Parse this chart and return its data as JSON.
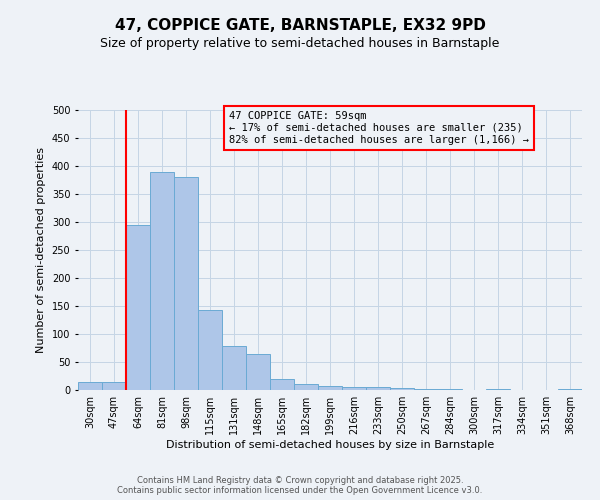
{
  "title": "47, COPPICE GATE, BARNSTAPLE, EX32 9PD",
  "subtitle": "Size of property relative to semi-detached houses in Barnstaple",
  "xlabel": "Distribution of semi-detached houses by size in Barnstaple",
  "ylabel": "Number of semi-detached properties",
  "bar_labels": [
    "30sqm",
    "47sqm",
    "64sqm",
    "81sqm",
    "98sqm",
    "115sqm",
    "131sqm",
    "148sqm",
    "165sqm",
    "182sqm",
    "199sqm",
    "216sqm",
    "233sqm",
    "250sqm",
    "267sqm",
    "284sqm",
    "300sqm",
    "317sqm",
    "334sqm",
    "351sqm",
    "368sqm"
  ],
  "bar_values": [
    15,
    15,
    295,
    390,
    380,
    143,
    79,
    65,
    20,
    10,
    8,
    5,
    5,
    3,
    1,
    1,
    0,
    1,
    0,
    0,
    2
  ],
  "bar_color": "#aec6e8",
  "bar_edge_color": "#6aaad4",
  "ylim": [
    0,
    500
  ],
  "yticks": [
    0,
    50,
    100,
    150,
    200,
    250,
    300,
    350,
    400,
    450,
    500
  ],
  "red_line_index": 2,
  "annotation_title": "47 COPPICE GATE: 59sqm",
  "annotation_line1": "← 17% of semi-detached houses are smaller (235)",
  "annotation_line2": "82% of semi-detached houses are larger (1,166) →",
  "footer_line1": "Contains HM Land Registry data © Crown copyright and database right 2025.",
  "footer_line2": "Contains public sector information licensed under the Open Government Licence v3.0.",
  "bg_color": "#eef2f7",
  "grid_color": "#c5d5e5",
  "title_fontsize": 11,
  "subtitle_fontsize": 9,
  "ylabel_fontsize": 8,
  "xlabel_fontsize": 8,
  "tick_fontsize": 7,
  "annotation_fontsize": 7.5,
  "footer_fontsize": 6
}
